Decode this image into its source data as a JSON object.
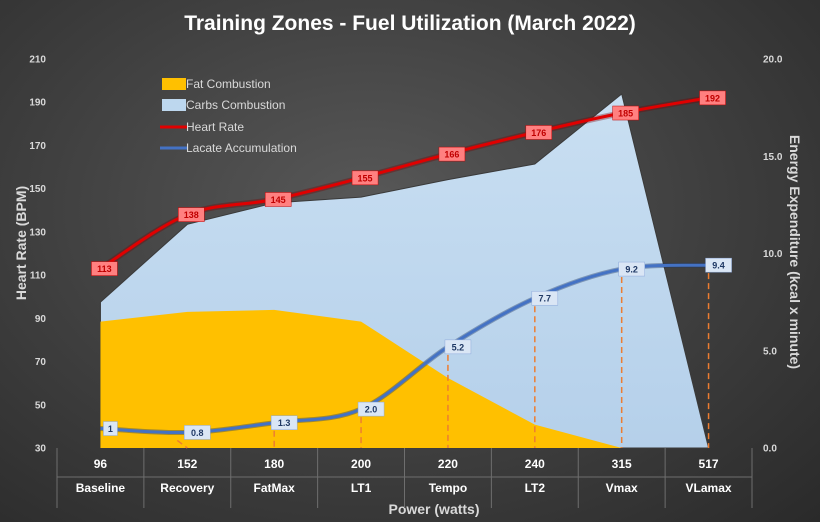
{
  "chart_data": {
    "type": "area",
    "title": "Training Zones - Fuel Utilization (March 2022)",
    "xlabel": "Power (watts)",
    "ylabel_left": "Heart Rate (BPM)",
    "ylabel_right": "Energy Expenditure (kcal x minute)",
    "categories": [
      "96",
      "152",
      "180",
      "200",
      "220",
      "240",
      "315",
      "517"
    ],
    "zone_labels": [
      "Baseline",
      "Recovery",
      "FatMax",
      "LT1",
      "Tempo",
      "LT2",
      "Vmax",
      "VLamax"
    ],
    "y_left": {
      "min": 30,
      "max": 210,
      "ticks": [
        "30",
        "50",
        "70",
        "90",
        "110",
        "130",
        "150",
        "170",
        "190",
        "210"
      ]
    },
    "y_right": {
      "min": 0,
      "max": 20,
      "ticks": [
        "0.0",
        "5.0",
        "10.0",
        "15.0",
        "20.0"
      ]
    },
    "legend_position": "top-left",
    "series": [
      {
        "name": "Fat Combustion",
        "axis": "right",
        "kind": "area",
        "color": "#ffc000",
        "values": [
          6.5,
          7.0,
          7.1,
          6.5,
          3.6,
          1.2,
          0.0,
          0.0
        ]
      },
      {
        "name": "Carbs Combustion",
        "axis": "right",
        "kind": "area_total",
        "color": "#bdd7ee",
        "values": [
          7.5,
          11.5,
          12.6,
          12.9,
          13.8,
          14.6,
          18.2,
          0.0
        ]
      },
      {
        "name": "Heart Rate",
        "axis": "left",
        "kind": "line",
        "color": "#e00000",
        "values": [
          113,
          138,
          145,
          155,
          166,
          176,
          185,
          192
        ],
        "labels": [
          "113",
          "138",
          "145",
          "155",
          "166",
          "176",
          "185",
          "192"
        ]
      },
      {
        "name": "Lacate Accumulation",
        "axis": "right",
        "kind": "line",
        "color": "#4472c4",
        "values": [
          1.0,
          0.8,
          1.3,
          2.0,
          5.2,
          7.7,
          9.2,
          9.4
        ],
        "labels": [
          "1",
          "0.8",
          "1.3",
          "2.0",
          "5.2",
          "7.7",
          "9.2",
          "9.4"
        ]
      }
    ]
  }
}
